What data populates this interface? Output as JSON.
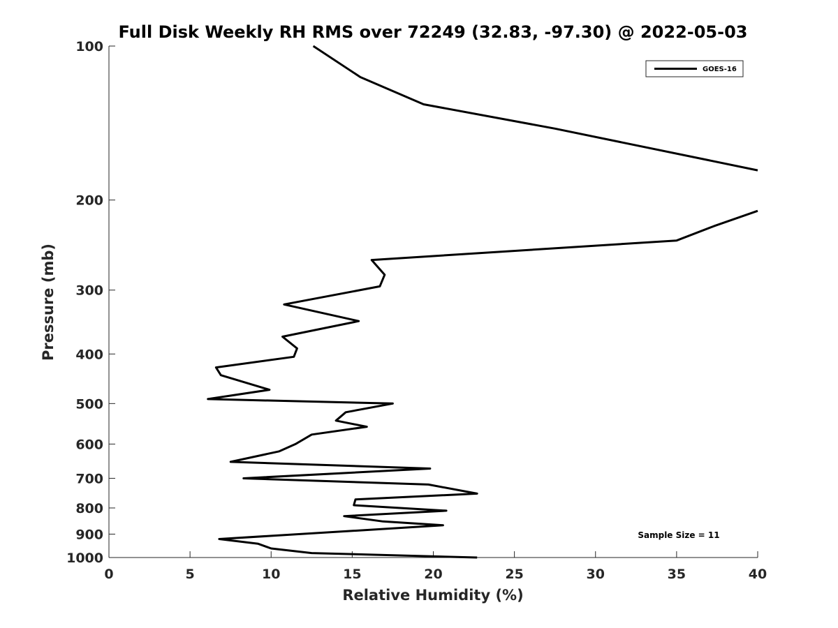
{
  "chart_data": {
    "type": "line",
    "title": "Full Disk Weekly RH RMS over 72249 (32.83, -97.30) @ 2022-05-03",
    "xlabel": "Relative Humidity (%)",
    "ylabel": "Pressure (mb)",
    "xlim": [
      0,
      40
    ],
    "ylim": [
      100,
      1000
    ],
    "yscale": "log",
    "y_reversed": true,
    "grid": false,
    "legend_position": "top-right",
    "xticks": [
      0,
      5,
      10,
      15,
      20,
      25,
      30,
      35,
      40
    ],
    "yticks": [
      100,
      200,
      300,
      400,
      500,
      600,
      700,
      800,
      900,
      1000
    ],
    "series": [
      {
        "name": "GOES-16",
        "color": "#000000",
        "x": [
          12.6,
          15.5,
          19.4,
          27.5,
          40.0,
          null,
          40.0,
          37.3,
          35.0,
          16.2,
          17.0,
          16.7,
          10.8,
          15.4,
          10.7,
          11.6,
          11.4,
          6.6,
          6.9,
          9.9,
          6.1,
          17.5,
          14.6,
          14.0,
          15.9,
          12.5,
          11.5,
          10.5,
          7.5,
          19.8,
          8.3,
          19.7,
          22.7,
          15.2,
          15.1,
          20.8,
          14.5,
          16.9,
          20.6,
          6.8,
          9.2,
          10.0,
          12.5,
          22.7
        ],
        "y": [
          100,
          115,
          130,
          145,
          175,
          null,
          210,
          225,
          240,
          262,
          280,
          295,
          320,
          345,
          370,
          390,
          405,
          425,
          440,
          470,
          490,
          500,
          520,
          540,
          555,
          575,
          600,
          620,
          650,
          670,
          700,
          720,
          750,
          770,
          790,
          810,
          830,
          850,
          865,
          920,
          940,
          960,
          980,
          1000
        ]
      }
    ],
    "annotations": [
      {
        "text": "Sample Size = 11",
        "position": "bottom-right"
      }
    ]
  }
}
